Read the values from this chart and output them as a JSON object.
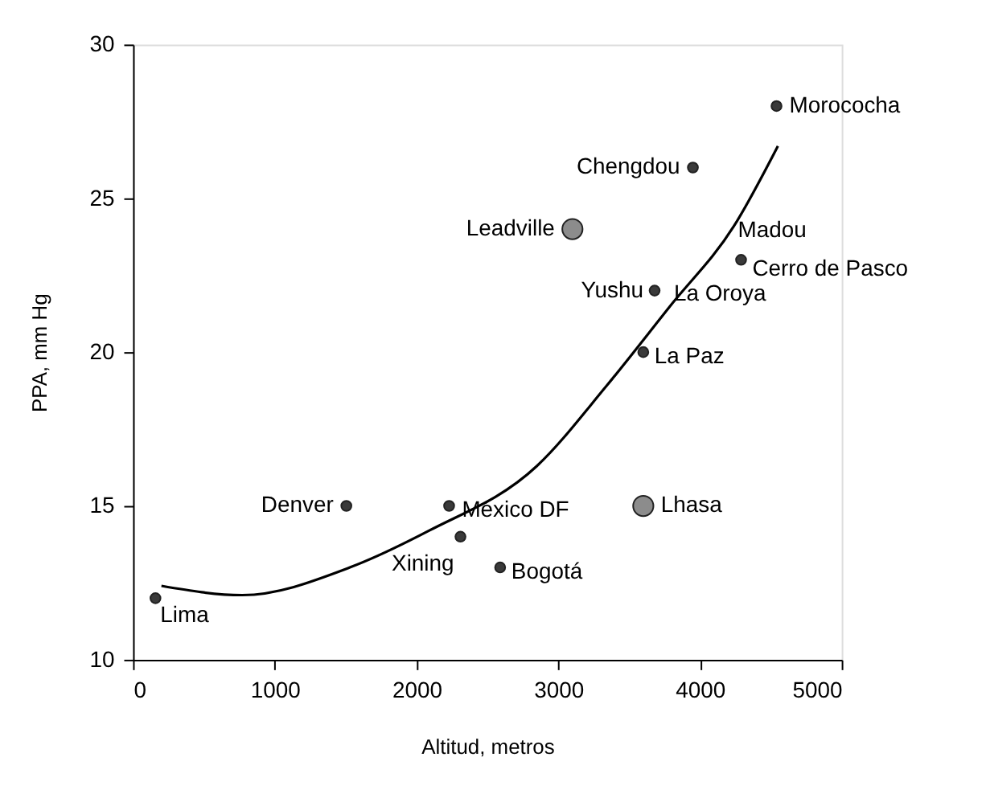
{
  "chart_data": {
    "type": "scatter",
    "xlabel": "Altitud, metros",
    "ylabel": "PPA, mm Hg",
    "xlim": [
      0,
      5000
    ],
    "xticks": [
      0,
      1000,
      2000,
      3000,
      4000,
      5000
    ],
    "ylim": [
      10,
      30
    ],
    "yticks": [
      10,
      15,
      20,
      25,
      30
    ],
    "grid": false,
    "marker": "circle",
    "series": [
      {
        "color": "#3a3a3a",
        "x": [
          4540,
          3950,
          4290,
          3680,
          3600,
          1505,
          2230,
          2310,
          2590,
          158
        ],
        "values": [
          28,
          26,
          23,
          22,
          20,
          15,
          15,
          14,
          13,
          12
        ]
      },
      {
        "color": "#8c8c8c",
        "x": [
          3100,
          3600
        ],
        "values": [
          24,
          15
        ]
      },
      {
        "type": "line",
        "color": "#000000",
        "line_style": "solid",
        "marker": "none",
        "x": [
          200,
          770,
          1530,
          2090,
          2850,
          3340,
          3790,
          4240,
          4550
        ],
        "values": [
          12.4,
          12.1,
          13.0,
          14.2,
          16.3,
          18.9,
          21.5,
          24.1,
          26.7
        ]
      }
    ],
    "annotations": [
      {
        "text": "Morococha",
        "x": 4540,
        "y": 28
      },
      {
        "text": "Chengdou",
        "x": 3950,
        "y": 26
      },
      {
        "text": "Leadville",
        "x": 3100,
        "y": 24
      },
      {
        "text": "Madou",
        "x": 4290,
        "y": 23
      },
      {
        "text": "Cerro de Pasco",
        "x": 4290,
        "y": 23
      },
      {
        "text": "Yushu",
        "x": 3680,
        "y": 22
      },
      {
        "text": "La Oroya",
        "x": 3680,
        "y": 22
      },
      {
        "text": "La Paz",
        "x": 3600,
        "y": 20
      },
      {
        "text": "Denver",
        "x": 1505,
        "y": 15
      },
      {
        "text": "México DF",
        "x": 2230,
        "y": 15
      },
      {
        "text": "Xining",
        "x": 2310,
        "y": 14
      },
      {
        "text": "Bogotá",
        "x": 2590,
        "y": 13
      },
      {
        "text": "Lhasa",
        "x": 3600,
        "y": 15
      },
      {
        "text": "Lima",
        "x": 158,
        "y": 12
      }
    ]
  }
}
